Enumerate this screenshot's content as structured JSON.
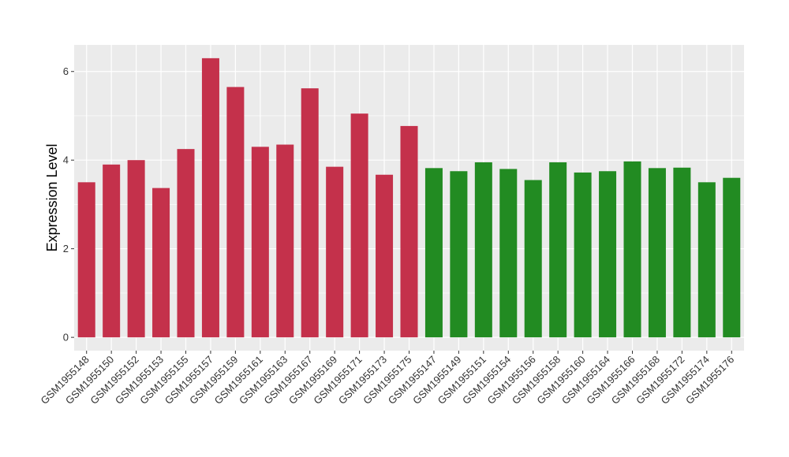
{
  "chart_data": {
    "type": "bar",
    "title": "",
    "xlabel": "",
    "ylabel": "Expression Level",
    "ylim": [
      -0.3,
      6.6
    ],
    "yticks": [
      0,
      2,
      4,
      6
    ],
    "grid": true,
    "colors": {
      "group1": "#C4314B",
      "group2": "#228B22",
      "panel": "#EBEBEB",
      "grid": "#FFFFFF"
    },
    "categories": [
      "GSM1955148",
      "GSM1955150",
      "GSM1955152",
      "GSM1955153",
      "GSM1955155",
      "GSM1955157",
      "GSM1955159",
      "GSM1955161",
      "GSM1955163",
      "GSM1955167",
      "GSM1955169",
      "GSM1955171",
      "GSM1955173",
      "GSM1955175",
      "GSM1955147",
      "GSM1955149",
      "GSM1955151",
      "GSM1955154",
      "GSM1955156",
      "GSM1955158",
      "GSM1955160",
      "GSM1955164",
      "GSM1955166",
      "GSM1955168",
      "GSM1955172",
      "GSM1955174",
      "GSM1955176"
    ],
    "values": [
      3.5,
      3.9,
      4.0,
      3.37,
      4.25,
      6.3,
      5.65,
      4.3,
      4.35,
      5.62,
      3.85,
      5.05,
      3.67,
      4.77,
      3.82,
      3.75,
      3.95,
      3.8,
      3.55,
      3.95,
      3.72,
      3.75,
      3.97,
      3.82,
      3.83,
      3.5,
      3.6
    ],
    "groups": [
      1,
      1,
      1,
      1,
      1,
      1,
      1,
      1,
      1,
      1,
      1,
      1,
      1,
      1,
      2,
      2,
      2,
      2,
      2,
      2,
      2,
      2,
      2,
      2,
      2,
      2,
      2
    ]
  }
}
